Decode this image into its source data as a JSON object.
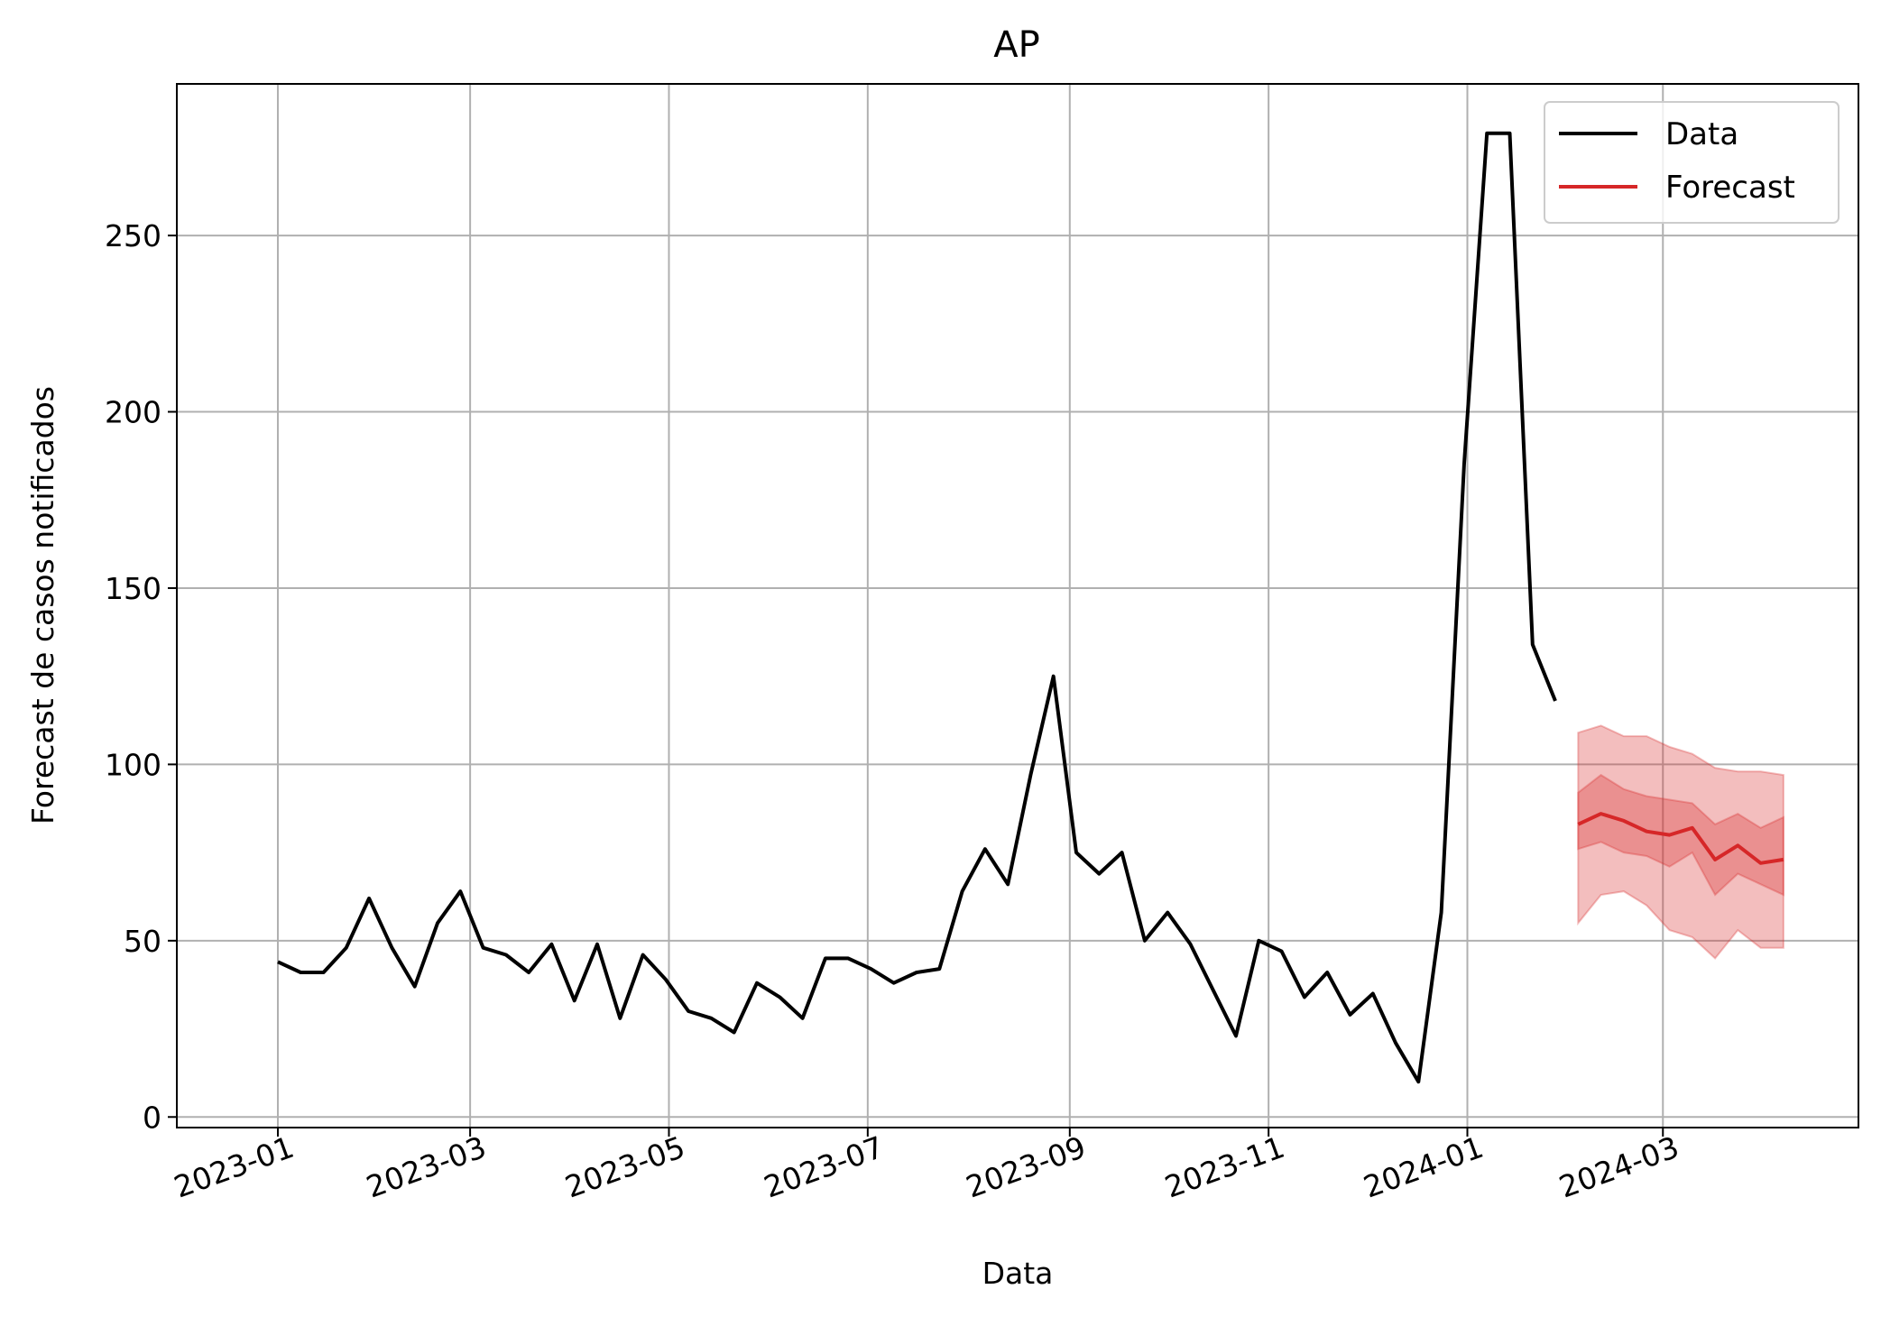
{
  "chart_data": {
    "type": "line",
    "title": "AP",
    "xlabel": "Data",
    "ylabel": "Forecast de casos notificados",
    "legend": {
      "position": "top-right",
      "entries": [
        "Data",
        "Forecast"
      ]
    },
    "grid": true,
    "xlim": [
      "2022-12-01",
      "2024-04-30"
    ],
    "ylim": [
      -3,
      293
    ],
    "x_ticks": [
      "2023-01",
      "2023-03",
      "2023-05",
      "2023-07",
      "2023-09",
      "2023-11",
      "2024-01",
      "2024-03"
    ],
    "y_ticks": [
      0,
      50,
      100,
      150,
      200,
      250
    ],
    "colors": {
      "data": "#000000",
      "forecast": "#d62728"
    },
    "series": [
      {
        "name": "Data",
        "x": [
          "2023-01-01",
          "2023-01-08",
          "2023-01-15",
          "2023-01-22",
          "2023-01-29",
          "2023-02-05",
          "2023-02-12",
          "2023-02-19",
          "2023-02-26",
          "2023-03-05",
          "2023-03-12",
          "2023-03-19",
          "2023-03-26",
          "2023-04-02",
          "2023-04-09",
          "2023-04-16",
          "2023-04-23",
          "2023-04-30",
          "2023-05-07",
          "2023-05-14",
          "2023-05-21",
          "2023-05-28",
          "2023-06-04",
          "2023-06-11",
          "2023-06-18",
          "2023-06-25",
          "2023-07-02",
          "2023-07-09",
          "2023-07-16",
          "2023-07-23",
          "2023-07-30",
          "2023-08-06",
          "2023-08-13",
          "2023-08-20",
          "2023-08-27",
          "2023-09-03",
          "2023-09-10",
          "2023-09-17",
          "2023-09-24",
          "2023-10-01",
          "2023-10-08",
          "2023-10-15",
          "2023-10-22",
          "2023-10-29",
          "2023-11-05",
          "2023-11-12",
          "2023-11-19",
          "2023-11-26",
          "2023-12-03",
          "2023-12-10",
          "2023-12-17",
          "2023-12-24",
          "2023-12-31",
          "2024-01-07",
          "2024-01-14",
          "2024-01-21",
          "2024-01-28"
        ],
        "values": [
          44,
          41,
          41,
          48,
          62,
          48,
          37,
          55,
          64,
          48,
          46,
          41,
          49,
          33,
          49,
          28,
          46,
          39,
          30,
          28,
          24,
          38,
          34,
          28,
          45,
          45,
          42,
          38,
          41,
          42,
          64,
          76,
          66,
          97,
          125,
          75,
          69,
          75,
          50,
          58,
          49,
          36,
          23,
          50,
          47,
          34,
          41,
          29,
          35,
          21,
          10,
          58,
          185,
          279,
          279,
          134,
          118
        ]
      },
      {
        "name": "Forecast",
        "x": [
          "2024-02-04",
          "2024-02-11",
          "2024-02-18",
          "2024-02-25",
          "2024-03-03",
          "2024-03-10",
          "2024-03-17",
          "2024-03-24",
          "2024-03-31",
          "2024-04-07"
        ],
        "values": [
          83,
          86,
          84,
          81,
          80,
          82,
          73,
          77,
          72,
          73
        ],
        "lower_50": [
          76,
          78,
          75,
          74,
          71,
          75,
          63,
          69,
          66,
          63
        ],
        "upper_50": [
          92,
          97,
          93,
          91,
          90,
          89,
          83,
          86,
          82,
          85
        ],
        "lower_90": [
          55,
          63,
          64,
          60,
          53,
          51,
          45,
          53,
          48,
          48
        ],
        "upper_90": [
          109,
          111,
          108,
          108,
          105,
          103,
          99,
          98,
          98,
          97
        ]
      }
    ]
  }
}
